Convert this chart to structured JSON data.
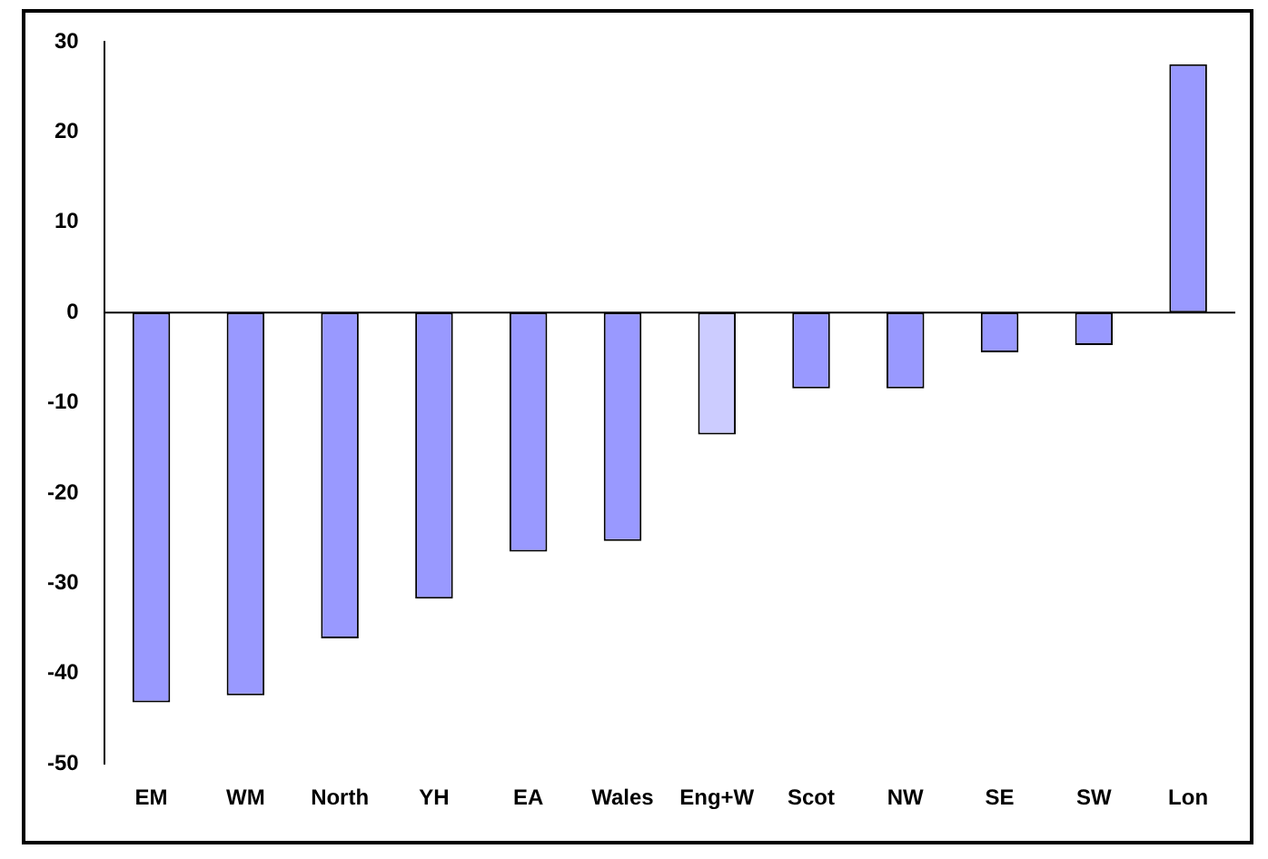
{
  "chart_data": {
    "type": "bar",
    "categories": [
      "EM",
      "WM",
      "North",
      "YH",
      "EA",
      "Wales",
      "Eng+W",
      "Scot",
      "NW",
      "SE",
      "SW",
      "Lon"
    ],
    "values": [
      -43.2,
      -42.4,
      -36.1,
      -31.7,
      -26.5,
      -25.3,
      -13.5,
      -8.4,
      -8.4,
      -4.4,
      -3.6,
      27.5
    ],
    "colors": [
      "#9999ff",
      "#9999ff",
      "#9999ff",
      "#9999ff",
      "#9999ff",
      "#9999ff",
      "#ccccff",
      "#9999ff",
      "#9999ff",
      "#9999ff",
      "#9999ff",
      "#9999ff"
    ],
    "ylim": [
      -50,
      30
    ],
    "yticks": [
      -50,
      -40,
      -30,
      -20,
      -10,
      0,
      10,
      20,
      30
    ],
    "legend": false
  }
}
